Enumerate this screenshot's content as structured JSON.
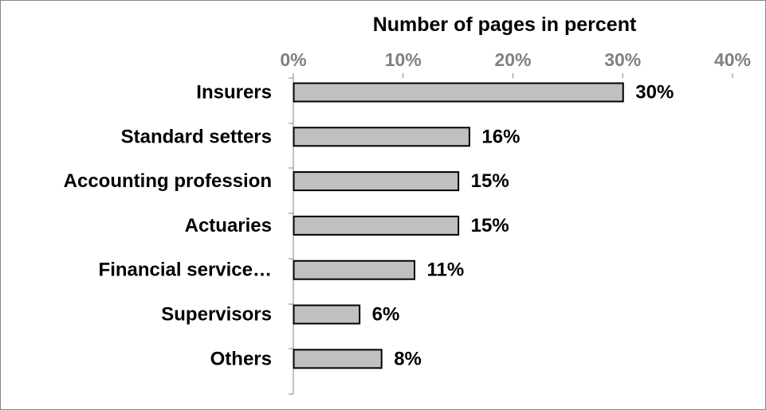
{
  "chart_data": {
    "type": "bar",
    "orientation": "horizontal",
    "title": "Number of pages in percent",
    "xlabel": "",
    "ylabel": "",
    "x_axis_position": "top",
    "xlim": [
      0,
      40
    ],
    "tick_values": [
      0,
      10,
      20,
      30,
      40
    ],
    "tick_labels": [
      "0%",
      "10%",
      "20%",
      "30%",
      "40%"
    ],
    "categories": [
      "Insurers",
      "Standard setters",
      "Accounting profession",
      "Actuaries",
      "Financial service…",
      "Supervisors",
      "Others"
    ],
    "values": [
      30,
      16,
      15,
      15,
      11,
      6,
      8
    ],
    "data_labels": [
      "30%",
      "16%",
      "15%",
      "15%",
      "11%",
      "6%",
      "8%"
    ],
    "grid": false,
    "legend": "none",
    "colors": {
      "bar_fill": "#c0c0c0",
      "bar_stroke": "#000000",
      "axis": "#868686",
      "tick_text": "#808080"
    }
  }
}
